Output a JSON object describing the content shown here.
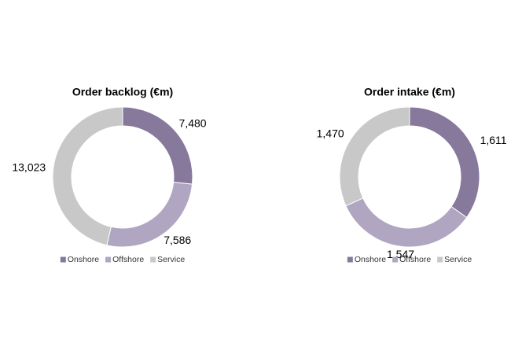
{
  "chart_data": [
    {
      "type": "donut",
      "title": "Order backlog (€m)",
      "categories": [
        "Onshore",
        "Offshore",
        "Service"
      ],
      "values": [
        7480,
        7586,
        13023
      ],
      "value_labels": [
        "7,480",
        "7,586",
        "13,023"
      ],
      "colors": [
        "#86799c",
        "#b0a6c2",
        "#c8c8c8"
      ],
      "legend": "bottom"
    },
    {
      "type": "donut",
      "title": "Order intake (€m)",
      "categories": [
        "Onshore",
        "Offshore",
        "Service"
      ],
      "values": [
        1611,
        1547,
        1470
      ],
      "value_labels": [
        "1,611",
        "1,547",
        "1,470"
      ],
      "colors": [
        "#86799c",
        "#b0a6c2",
        "#c8c8c8"
      ],
      "legend": "bottom"
    }
  ]
}
